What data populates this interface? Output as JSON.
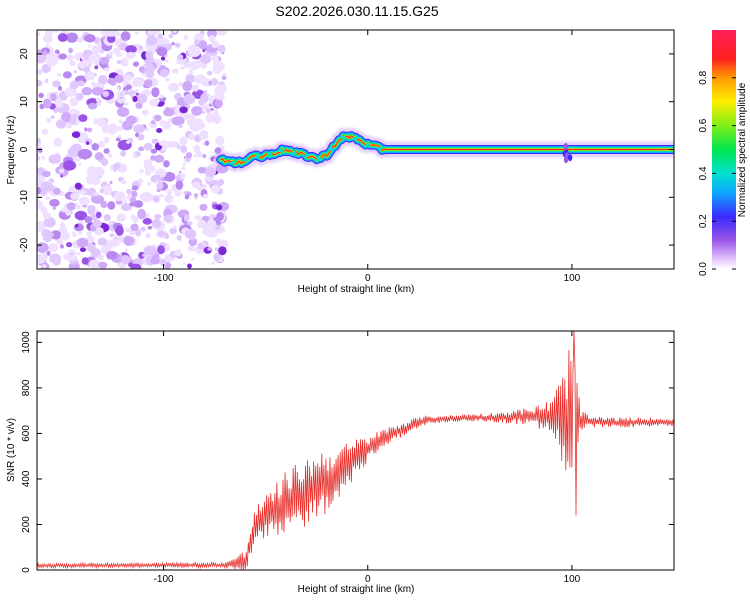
{
  "title": "S202.2026.030.11.15.G25",
  "colors": {
    "line": "#e8302c",
    "noise": "#9a55e6",
    "frame": "#000000"
  },
  "chart_data": [
    {
      "type": "heatmap",
      "name": "spectrogram",
      "xlabel": "Height of straight line (km)",
      "ylabel": "Frequency (Hz)",
      "xlim": [
        -162,
        150
      ],
      "ylim": [
        -25,
        25
      ],
      "xticks": [
        -100,
        0,
        100
      ],
      "yticks": [
        -20,
        -10,
        0,
        10,
        20
      ],
      "noise_region_x": [
        -162,
        -72
      ],
      "ridge": {
        "x": [
          -72,
          -68,
          -64,
          -60,
          -56,
          -52,
          -48,
          -44,
          -40,
          -36,
          -32,
          -28,
          -24,
          -20,
          -16,
          -12,
          -8,
          -4,
          0,
          4,
          8,
          12,
          150
        ],
        "freq": [
          -2.0,
          -2.5,
          -3.0,
          -2.2,
          -1.2,
          -1.5,
          -1.0,
          -0.5,
          0.0,
          -0.8,
          -1.0,
          -1.5,
          -2.0,
          -1.0,
          1.0,
          2.5,
          2.7,
          2.0,
          1.0,
          0.5,
          0.0,
          0.0,
          0.0
        ]
      },
      "colorbar": {
        "label": "Normalized spectral amplitude",
        "ticks": [
          "0.0",
          "0.2",
          "0.4",
          "0.6",
          "0.8"
        ],
        "tick_values": [
          0.0,
          0.2,
          0.4,
          0.6,
          0.8
        ],
        "range": [
          0,
          1
        ]
      }
    },
    {
      "type": "line",
      "name": "snr",
      "xlabel": "Height of straight line (km)",
      "ylabel": "SNR (10 * v/v)",
      "xlim": [
        -162,
        150
      ],
      "ylim": [
        0,
        1050
      ],
      "xticks": [
        -100,
        0,
        100
      ],
      "yticks": [
        0,
        200,
        400,
        600,
        800,
        1000
      ],
      "trend": {
        "x": [
          -162,
          -70,
          -60,
          -55,
          -50,
          -45,
          -40,
          -35,
          -30,
          -25,
          -20,
          -15,
          -10,
          -5,
          0,
          5,
          10,
          15,
          20,
          25,
          30,
          40,
          50,
          60,
          70,
          80,
          90,
          100,
          110,
          120,
          130,
          140,
          150
        ],
        "y": [
          20,
          22,
          30,
          200,
          230,
          260,
          300,
          320,
          340,
          370,
          390,
          420,
          460,
          500,
          530,
          560,
          590,
          610,
          630,
          650,
          660,
          665,
          670,
          670,
          672,
          675,
          670,
          660,
          650,
          648,
          648,
          650,
          650
        ]
      },
      "noise_amplitude": {
        "x": [
          -162,
          -70,
          -60,
          -40,
          -25,
          -10,
          0,
          10,
          20,
          30,
          40,
          60,
          80,
          90,
          95,
          98,
          100,
          102,
          104,
          108,
          150
        ],
        "amp": [
          10,
          12,
          60,
          140,
          160,
          100,
          60,
          40,
          28,
          20,
          15,
          20,
          40,
          80,
          200,
          300,
          380,
          250,
          60,
          25,
          18
        ]
      },
      "spike": {
        "x": 101,
        "max": 1050,
        "min": 240
      }
    }
  ]
}
